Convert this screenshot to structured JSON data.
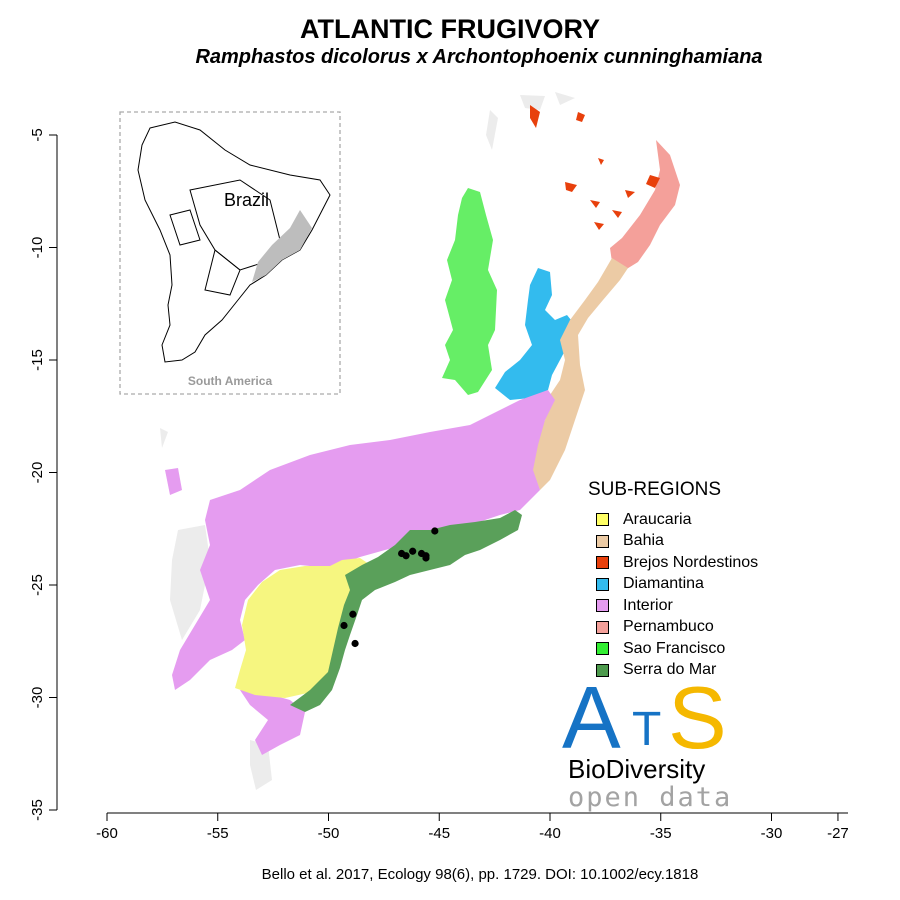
{
  "title": "ATLANTIC FRUGIVORY",
  "subtitle": "Ramphastos dicolorus x Archontophoenix cunninghamiana",
  "citation": "Bello et al.  2017, Ecology 98(6), pp. 1729. DOI: 10.1002/ecy.1818",
  "inset": {
    "label": "Brazil",
    "caption": "South America"
  },
  "x_ticks": [
    "-60",
    "-55",
    "-50",
    "-45",
    "-40",
    "-35",
    "-30",
    "-27"
  ],
  "y_ticks": [
    "-5",
    "-10",
    "-15",
    "-20",
    "-25",
    "-30",
    "-35"
  ],
  "legend": {
    "title": "SUB-REGIONS",
    "items": [
      {
        "label": "Araucaria",
        "color": "#ffff66"
      },
      {
        "label": "Bahia",
        "color": "#eccba5"
      },
      {
        "label": "Brejos Nordestinos",
        "color": "#e8400c"
      },
      {
        "label": "Diamantina",
        "color": "#33bbee"
      },
      {
        "label": "Interior",
        "color": "#e59cf0"
      },
      {
        "label": "Pernambuco",
        "color": "#f4a09a"
      },
      {
        "label": "Sao Francisco",
        "color": "#33ee33"
      },
      {
        "label": "Serra do Mar",
        "color": "#4d9a4d"
      }
    ]
  },
  "logo": {
    "letter_a": "A",
    "letter_t": "T",
    "letter_s": "S",
    "line1": "BioDiversity",
    "line2": "open  data"
  },
  "occurrence_points": [
    {
      "lon": -49.3,
      "lat": -26.8
    },
    {
      "lon": -48.9,
      "lat": -26.3
    },
    {
      "lon": -48.8,
      "lat": -27.6
    },
    {
      "lon": -46.7,
      "lat": -23.6
    },
    {
      "lon": -46.5,
      "lat": -23.7
    },
    {
      "lon": -46.2,
      "lat": -23.5
    },
    {
      "lon": -45.8,
      "lat": -23.6
    },
    {
      "lon": -45.6,
      "lat": -23.7
    },
    {
      "lon": -45.6,
      "lat": -23.8
    },
    {
      "lon": -45.2,
      "lat": -22.6
    }
  ],
  "axis": {
    "xlim": [
      -60,
      -27
    ],
    "ylim": [
      -35,
      -5
    ],
    "point_color": "#000000",
    "outside_color": "#ececec"
  }
}
